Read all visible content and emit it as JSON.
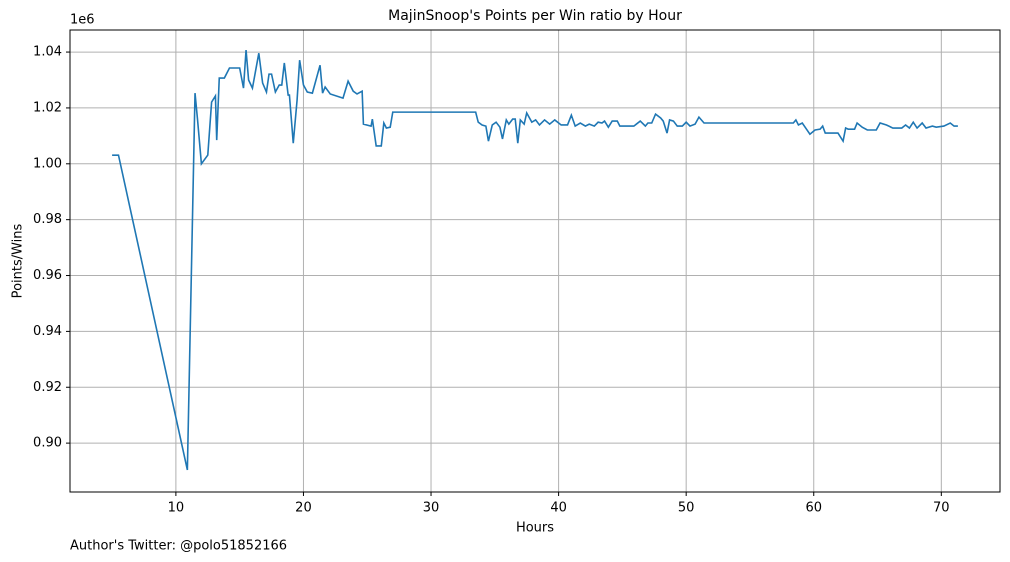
{
  "chart_data": {
    "type": "line",
    "title": "MajinSnoop's Points per Win ratio by Hour",
    "x_label": "Hours",
    "y_label": "Points/Wins",
    "y_offset_label": "1e6",
    "footer": "Author's Twitter: @polo51852166",
    "color": "#1f77b4",
    "grid": true,
    "xlim": [
      1.7,
      74.6
    ],
    "ylim": [
      0.8825,
      1.0479
    ],
    "xticks": [
      10,
      20,
      30,
      40,
      50,
      60,
      70
    ],
    "yticks": [
      {
        "value": 0.9,
        "label": "0.90"
      },
      {
        "value": 0.92,
        "label": "0.92"
      },
      {
        "value": 0.94,
        "label": "0.94"
      },
      {
        "value": 0.96,
        "label": "0.96"
      },
      {
        "value": 0.98,
        "label": "0.98"
      },
      {
        "value": 1.0,
        "label": "1.00"
      },
      {
        "value": 1.02,
        "label": "1.02"
      },
      {
        "value": 1.04,
        "label": "1.04"
      }
    ],
    "x": [
      5.0,
      5.5,
      10.9,
      11.5,
      11.7,
      12.0,
      12.5,
      12.8,
      13.1,
      13.2,
      13.4,
      13.8,
      14.2,
      15.0,
      15.3,
      15.5,
      15.7,
      16.0,
      16.5,
      16.8,
      17.1,
      17.3,
      17.5,
      17.8,
      18.1,
      18.3,
      18.5,
      18.8,
      18.9,
      19.2,
      19.5,
      19.7,
      20.0,
      20.3,
      20.7,
      21.3,
      21.5,
      21.7,
      22.1,
      23.1,
      23.5,
      23.9,
      24.2,
      24.6,
      24.7,
      25.3,
      25.4,
      25.7,
      26.1,
      26.3,
      26.5,
      26.8,
      27.0,
      33.5,
      33.7,
      34.0,
      34.3,
      34.5,
      34.8,
      35.1,
      35.4,
      35.6,
      35.9,
      36.1,
      36.4,
      36.6,
      36.8,
      37.0,
      37.3,
      37.5,
      37.9,
      38.2,
      38.5,
      38.9,
      39.3,
      39.7,
      40.2,
      40.7,
      41.0,
      41.3,
      41.7,
      42.1,
      42.4,
      42.8,
      43.1,
      43.4,
      43.6,
      43.9,
      44.2,
      44.6,
      44.8,
      45.9,
      46.4,
      46.8,
      47.0,
      47.3,
      47.6,
      48.0,
      48.2,
      48.5,
      48.7,
      49.0,
      49.3,
      49.7,
      50.0,
      50.3,
      50.7,
      51.0,
      51.4,
      58.4,
      58.6,
      58.8,
      59.1,
      59.7,
      60.1,
      60.5,
      60.7,
      60.9,
      61.9,
      62.3,
      62.5,
      62.7,
      63.2,
      63.4,
      63.8,
      64.2,
      64.9,
      65.2,
      65.7,
      66.2,
      66.9,
      67.2,
      67.5,
      67.8,
      68.1,
      68.5,
      68.8,
      69.3,
      69.6,
      70.2,
      70.7,
      71.0,
      71.3
    ],
    "values": [
      1.0031,
      1.0031,
      0.8904,
      1.0253,
      1.0157,
      1.0,
      1.0031,
      1.0221,
      1.0243,
      1.0085,
      1.0307,
      1.0307,
      1.0343,
      1.0343,
      1.0271,
      1.0407,
      1.03,
      1.0271,
      1.0396,
      1.0289,
      1.0257,
      1.0321,
      1.0321,
      1.0257,
      1.0282,
      1.0282,
      1.0361,
      1.0246,
      1.0246,
      1.0074,
      1.0228,
      1.0371,
      1.0282,
      1.0257,
      1.0253,
      1.0353,
      1.0253,
      1.0275,
      1.025,
      1.0235,
      1.0296,
      1.026,
      1.025,
      1.026,
      1.0142,
      1.0135,
      1.016,
      1.0064,
      1.0064,
      1.0146,
      1.0128,
      1.0131,
      1.0185,
      1.0185,
      1.0149,
      1.0139,
      1.0135,
      1.0081,
      1.0139,
      1.0149,
      1.0131,
      1.0089,
      1.0157,
      1.0142,
      1.016,
      1.016,
      1.0074,
      1.0157,
      1.0142,
      1.0182,
      1.0149,
      1.0157,
      1.0139,
      1.0157,
      1.0142,
      1.0157,
      1.0139,
      1.0139,
      1.0174,
      1.0135,
      1.0146,
      1.0135,
      1.0142,
      1.0135,
      1.0149,
      1.0146,
      1.0153,
      1.0131,
      1.0153,
      1.0153,
      1.0135,
      1.0135,
      1.0153,
      1.0135,
      1.0146,
      1.0146,
      1.0178,
      1.0164,
      1.0153,
      1.011,
      1.0157,
      1.0153,
      1.0135,
      1.0135,
      1.0149,
      1.0135,
      1.0142,
      1.0167,
      1.0146,
      1.0146,
      1.0157,
      1.0139,
      1.0146,
      1.0106,
      1.0121,
      1.0124,
      1.0135,
      1.011,
      1.011,
      1.0081,
      1.0128,
      1.0124,
      1.0124,
      1.0146,
      1.0131,
      1.0121,
      1.0121,
      1.0146,
      1.0139,
      1.0128,
      1.0128,
      1.0139,
      1.0128,
      1.0149,
      1.0128,
      1.0146,
      1.0128,
      1.0135,
      1.0131,
      1.0135,
      1.0146,
      1.0135,
      1.0135
    ]
  }
}
